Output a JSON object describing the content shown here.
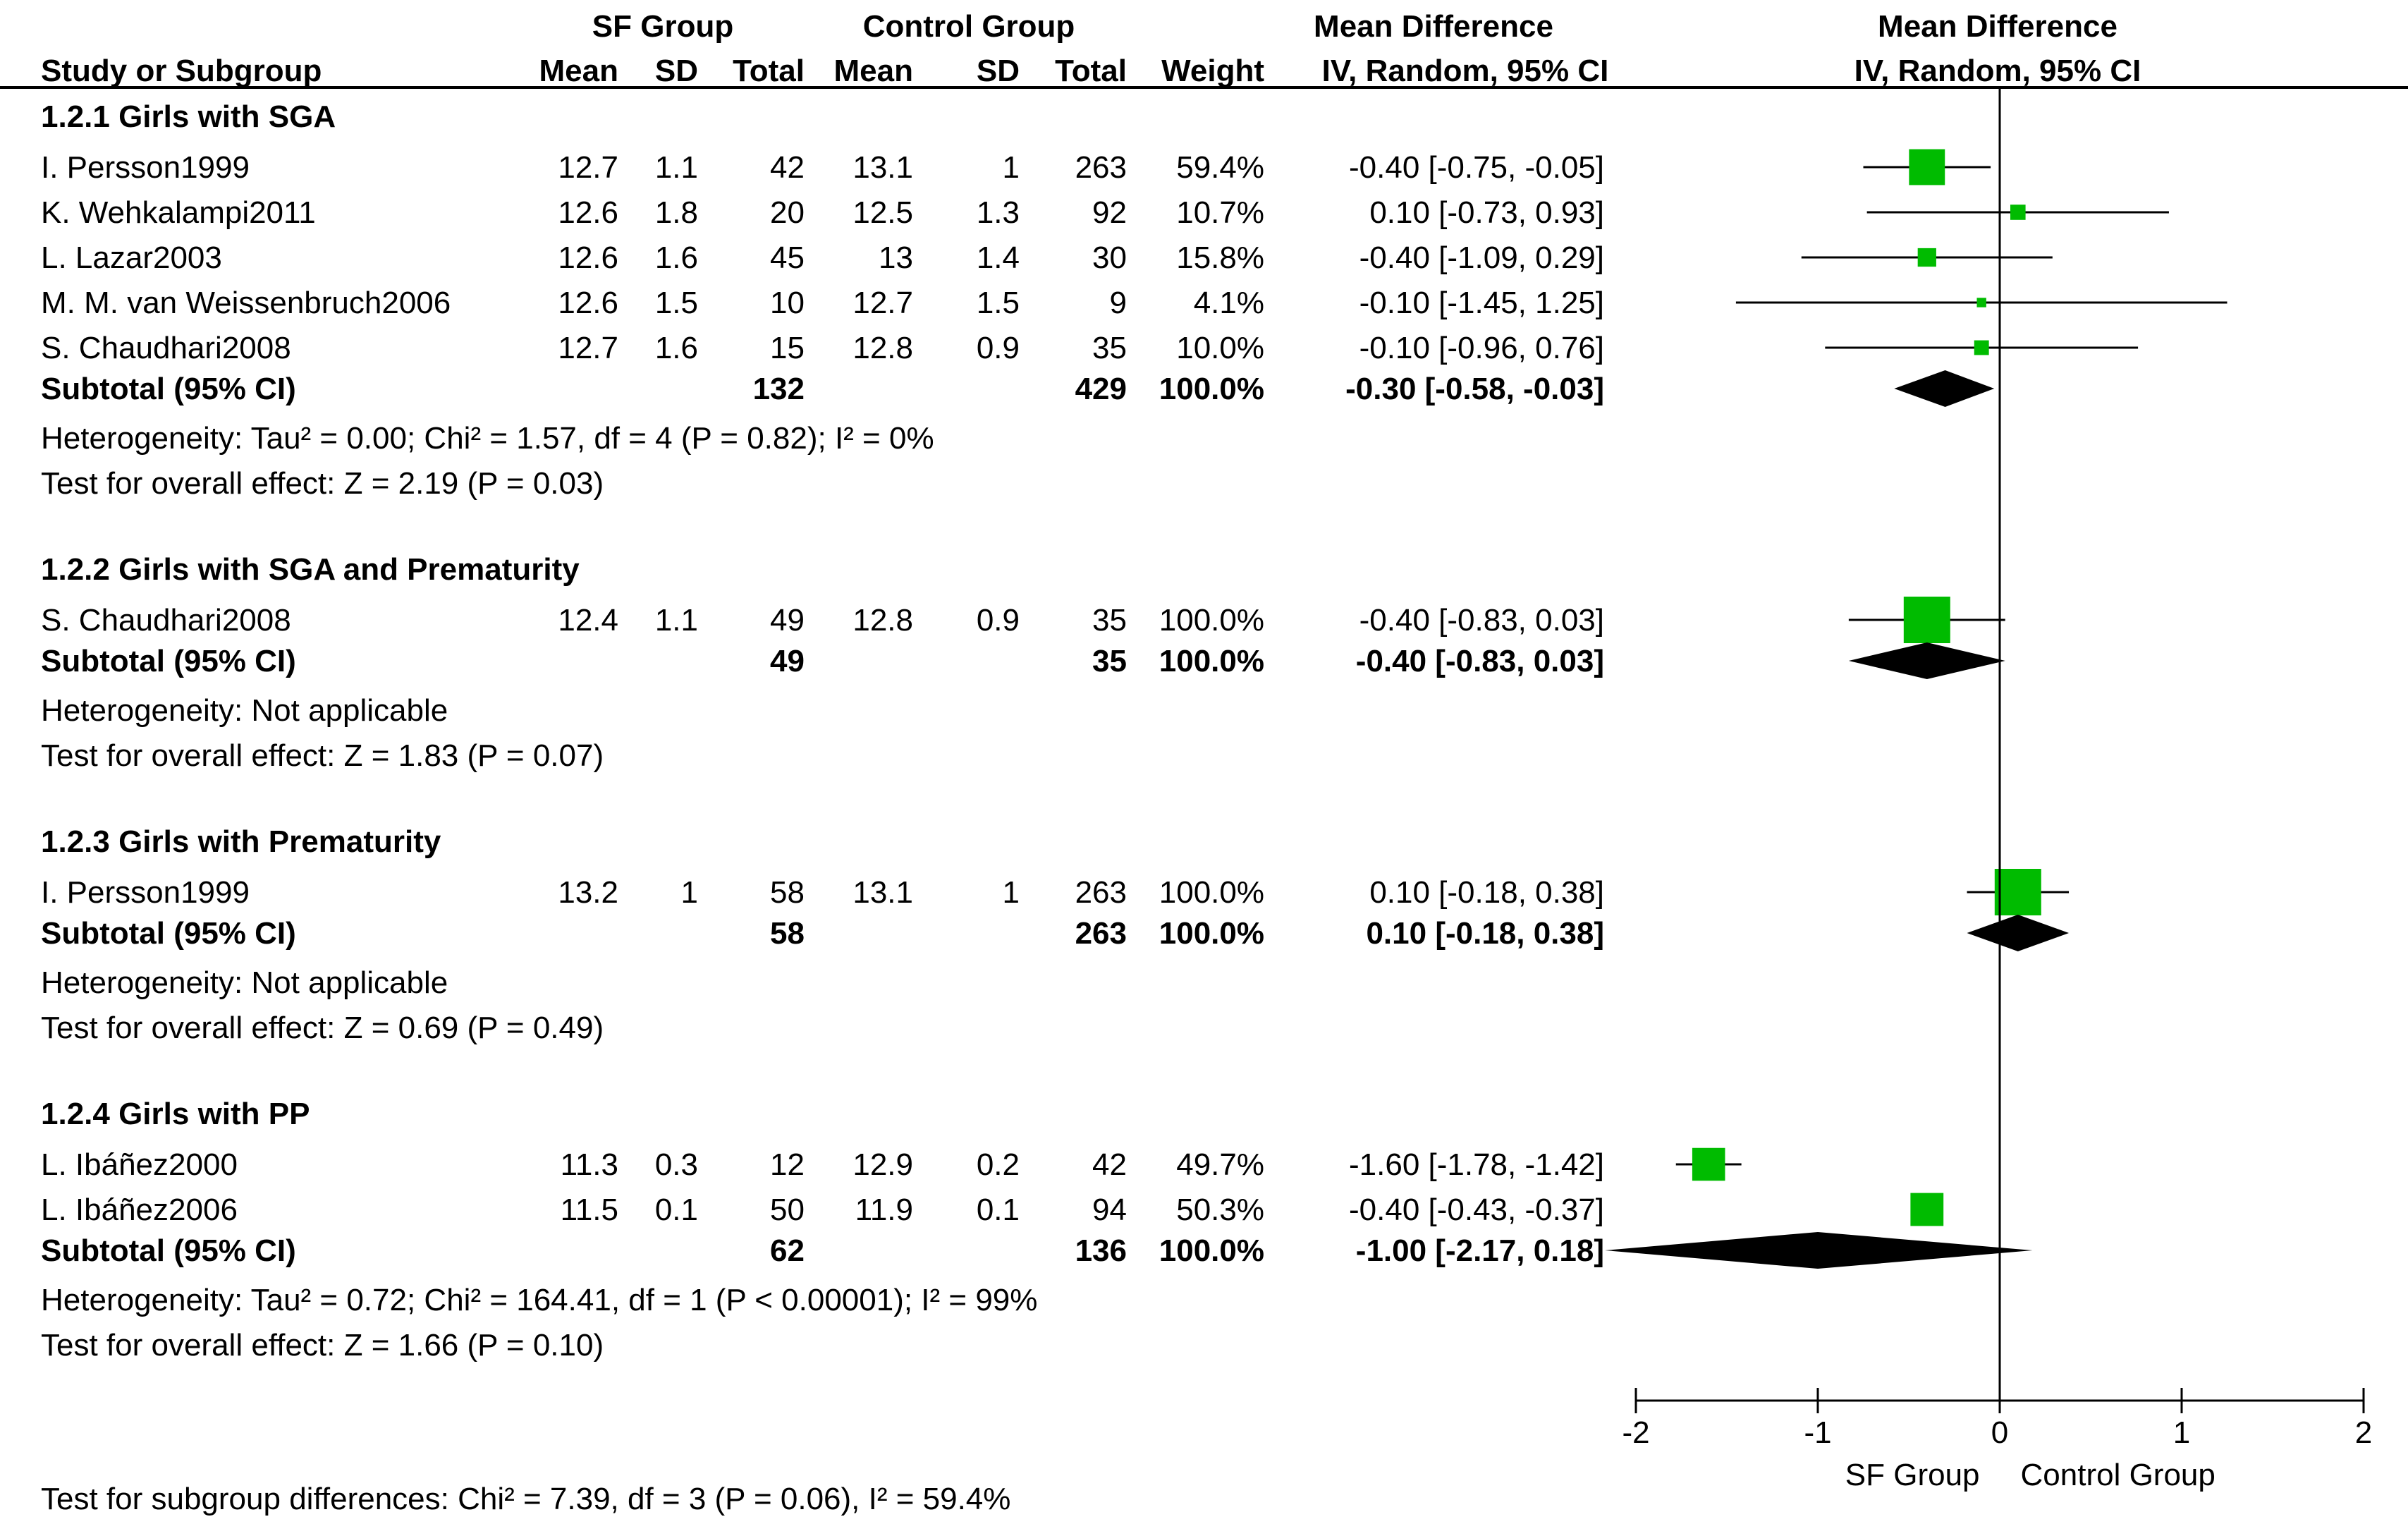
{
  "chart_data": {
    "type": "forest",
    "headers": {
      "group1": "SF Group",
      "group2": "Control Group",
      "md_table": "Mean Difference",
      "md_plot": "Mean Difference",
      "study": "Study or Subgroup",
      "mean1": "Mean",
      "sd1": "SD",
      "total1": "Total",
      "mean2": "Mean",
      "sd2": "SD",
      "total2": "Total",
      "weight": "Weight",
      "method_table": "IV, Random, 95% CI",
      "method_plot": "IV, Random, 95% CI"
    },
    "xlim": [
      -2,
      2
    ],
    "ticks": [
      -2,
      -1,
      0,
      1,
      2
    ],
    "tick_labels": [
      "-2",
      "-1",
      "0",
      "1",
      "2"
    ],
    "favours_left": "SF Group",
    "favours_right": "Control Group",
    "marker_color": "#00bb00",
    "diamond_color": "#000000",
    "groups": [
      {
        "title": "1.2.1 Girls with SGA",
        "studies": [
          {
            "name": "I. Persson1999",
            "mean1": "12.7",
            "sd1": "1.1",
            "n1": "42",
            "mean2": "13.1",
            "sd2": "1",
            "n2": "263",
            "weight": "59.4%",
            "ci": "-0.40 [-0.75, -0.05]",
            "md": -0.4,
            "lo": -0.75,
            "hi": -0.05,
            "w": 59.4
          },
          {
            "name": "K. Wehkalampi2011",
            "mean1": "12.6",
            "sd1": "1.8",
            "n1": "20",
            "mean2": "12.5",
            "sd2": "1.3",
            "n2": "92",
            "weight": "10.7%",
            "ci": "0.10 [-0.73, 0.93]",
            "md": 0.1,
            "lo": -0.73,
            "hi": 0.93,
            "w": 10.7
          },
          {
            "name": "L. Lazar2003",
            "mean1": "12.6",
            "sd1": "1.6",
            "n1": "45",
            "mean2": "13",
            "sd2": "1.4",
            "n2": "30",
            "weight": "15.8%",
            "ci": "-0.40 [-1.09, 0.29]",
            "md": -0.4,
            "lo": -1.09,
            "hi": 0.29,
            "w": 15.8
          },
          {
            "name": "M. M. van Weissenbruch2006",
            "mean1": "12.6",
            "sd1": "1.5",
            "n1": "10",
            "mean2": "12.7",
            "sd2": "1.5",
            "n2": "9",
            "weight": "4.1%",
            "ci": "-0.10 [-1.45, 1.25]",
            "md": -0.1,
            "lo": -1.45,
            "hi": 1.25,
            "w": 4.1
          },
          {
            "name": "S. Chaudhari2008",
            "mean1": "12.7",
            "sd1": "1.6",
            "n1": "15",
            "mean2": "12.8",
            "sd2": "0.9",
            "n2": "35",
            "weight": "10.0%",
            "ci": "-0.10 [-0.96, 0.76]",
            "md": -0.1,
            "lo": -0.96,
            "hi": 0.76,
            "w": 10.0
          }
        ],
        "subtotal": {
          "label": "Subtotal (95% CI)",
          "n1": "132",
          "n2": "429",
          "weight": "100.0%",
          "ci": "-0.30 [-0.58, -0.03]",
          "md": -0.3,
          "lo": -0.58,
          "hi": -0.03
        },
        "heterogeneity": "Heterogeneity: Tau² = 0.00; Chi² = 1.57, df = 4 (P = 0.82); I² = 0%",
        "overall": "Test for overall effect: Z = 2.19 (P = 0.03)"
      },
      {
        "title": "1.2.2 Girls with SGA and Prematurity",
        "studies": [
          {
            "name": "S. Chaudhari2008",
            "mean1": "12.4",
            "sd1": "1.1",
            "n1": "49",
            "mean2": "12.8",
            "sd2": "0.9",
            "n2": "35",
            "weight": "100.0%",
            "ci": "-0.40 [-0.83, 0.03]",
            "md": -0.4,
            "lo": -0.83,
            "hi": 0.03,
            "w": 100.0
          }
        ],
        "subtotal": {
          "label": "Subtotal (95% CI)",
          "n1": "49",
          "n2": "35",
          "weight": "100.0%",
          "ci": "-0.40 [-0.83, 0.03]",
          "md": -0.4,
          "lo": -0.83,
          "hi": 0.03
        },
        "heterogeneity": "Heterogeneity: Not applicable",
        "overall": "Test for overall effect: Z = 1.83 (P = 0.07)"
      },
      {
        "title": "1.2.3 Girls with Prematurity",
        "studies": [
          {
            "name": "I. Persson1999",
            "mean1": "13.2",
            "sd1": "1",
            "n1": "58",
            "mean2": "13.1",
            "sd2": "1",
            "n2": "263",
            "weight": "100.0%",
            "ci": "0.10 [-0.18, 0.38]",
            "md": 0.1,
            "lo": -0.18,
            "hi": 0.38,
            "w": 100.0
          }
        ],
        "subtotal": {
          "label": "Subtotal (95% CI)",
          "n1": "58",
          "n2": "263",
          "weight": "100.0%",
          "ci": "0.10 [-0.18, 0.38]",
          "md": 0.1,
          "lo": -0.18,
          "hi": 0.38
        },
        "heterogeneity": "Heterogeneity: Not applicable",
        "overall": "Test for overall effect: Z = 0.69 (P = 0.49)"
      },
      {
        "title": "1.2.4 Girls with PP",
        "studies": [
          {
            "name": "L. Ibáñez2000",
            "mean1": "11.3",
            "sd1": "0.3",
            "n1": "12",
            "mean2": "12.9",
            "sd2": "0.2",
            "n2": "42",
            "weight": "49.7%",
            "ci": "-1.60 [-1.78, -1.42]",
            "md": -1.6,
            "lo": -1.78,
            "hi": -1.42,
            "w": 49.7
          },
          {
            "name": "L. Ibáñez2006",
            "mean1": "11.5",
            "sd1": "0.1",
            "n1": "50",
            "mean2": "11.9",
            "sd2": "0.1",
            "n2": "94",
            "weight": "50.3%",
            "ci": "-0.40 [-0.43, -0.37]",
            "md": -0.4,
            "lo": -0.43,
            "hi": -0.37,
            "w": 50.3
          }
        ],
        "subtotal": {
          "label": "Subtotal (95% CI)",
          "n1": "62",
          "n2": "136",
          "weight": "100.0%",
          "ci": "-1.00 [-2.17, 0.18]",
          "md": -1.0,
          "lo": -2.17,
          "hi": 0.18
        },
        "heterogeneity": "Heterogeneity: Tau² = 0.72; Chi² = 164.41, df = 1 (P < 0.00001); I² = 99%",
        "overall": "Test for overall effect: Z = 1.66 (P = 0.10)"
      }
    ],
    "subgroup_test": "Test for subgroup differences: Chi² = 7.39, df = 3 (P = 0.06), I² = 59.4%"
  }
}
